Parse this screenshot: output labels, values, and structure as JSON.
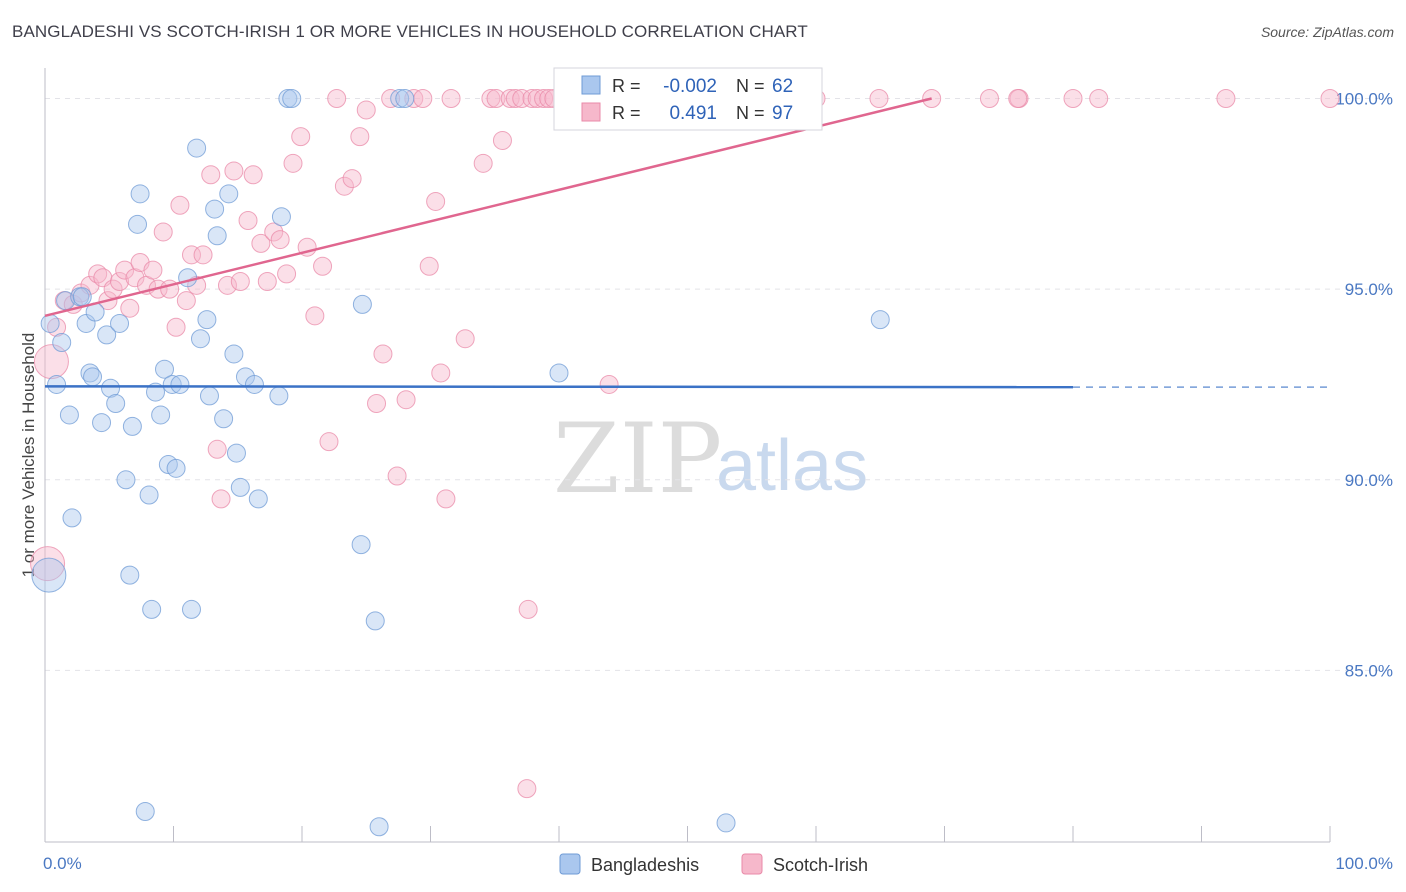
{
  "header": {
    "title": "BANGLADESHI VS SCOTCH-IRISH 1 OR MORE VEHICLES IN HOUSEHOLD CORRELATION CHART",
    "source": "Source: ZipAtlas.com"
  },
  "watermark": {
    "zip": "ZIP",
    "atlas": "atlas"
  },
  "colors": {
    "blue_fill": "#aac7ee",
    "blue_stroke": "#6f9bd6",
    "blue_line": "#3b72c6",
    "pink_fill": "#f6b8cb",
    "pink_stroke": "#e98aa8",
    "pink_line": "#e0668f",
    "axis_text": "#4a78c2",
    "grid": "#e3e3e8"
  },
  "stats_box": {
    "r_label": "R =",
    "n_label": "N =",
    "rows": [
      {
        "series": "Bangladeshis",
        "r": "-0.002",
        "n": "62"
      },
      {
        "series": "Scotch-Irish",
        "r": "0.491",
        "n": "97"
      }
    ]
  },
  "legend": {
    "items": [
      "Bangladeshis",
      "Scotch-Irish"
    ]
  },
  "chart_data": {
    "type": "scatter",
    "title": "BANGLADESHI VS SCOTCH-IRISH 1 OR MORE VEHICLES IN HOUSEHOLD CORRELATION CHART",
    "xlabel": "",
    "ylabel": "1 or more Vehicles in Household",
    "xlim": [
      0,
      100
    ],
    "ylim": [
      80.5,
      100.8
    ],
    "x_tick_labels": [
      "0.0%",
      "100.0%"
    ],
    "y_ticks": [
      85,
      90,
      95,
      100
    ],
    "y_tick_labels": [
      "85.0%",
      "90.0%",
      "95.0%",
      "100.0%"
    ],
    "grid": true,
    "series": [
      {
        "name": "Bangladeshis",
        "r": -0.002,
        "n": 62,
        "trend": {
          "x": [
            0,
            80
          ],
          "y": [
            92.45,
            92.43
          ],
          "dashed_to_x": 100
        },
        "points": [
          [
            0.3,
            87.5
          ],
          [
            0.4,
            94.1
          ],
          [
            0.9,
            92.5
          ],
          [
            1.3,
            93.6
          ],
          [
            1.6,
            94.7
          ],
          [
            1.9,
            91.7
          ],
          [
            2.1,
            89.0
          ],
          [
            2.7,
            94.8
          ],
          [
            2.9,
            94.8
          ],
          [
            3.2,
            94.1
          ],
          [
            3.5,
            92.8
          ],
          [
            3.7,
            92.7
          ],
          [
            3.9,
            94.4
          ],
          [
            4.4,
            91.5
          ],
          [
            4.8,
            93.8
          ],
          [
            5.1,
            92.4
          ],
          [
            5.5,
            92.0
          ],
          [
            5.8,
            94.1
          ],
          [
            6.3,
            90.0
          ],
          [
            6.6,
            87.5
          ],
          [
            6.8,
            91.4
          ],
          [
            7.2,
            96.7
          ],
          [
            7.4,
            97.5
          ],
          [
            7.8,
            81.3
          ],
          [
            8.1,
            89.6
          ],
          [
            8.3,
            86.6
          ],
          [
            8.6,
            92.3
          ],
          [
            9.0,
            91.7
          ],
          [
            9.3,
            92.9
          ],
          [
            9.6,
            90.4
          ],
          [
            9.9,
            92.5
          ],
          [
            10.2,
            90.3
          ],
          [
            10.5,
            92.5
          ],
          [
            11.1,
            95.3
          ],
          [
            11.4,
            86.6
          ],
          [
            11.8,
            98.7
          ],
          [
            12.1,
            93.7
          ],
          [
            12.6,
            94.2
          ],
          [
            12.8,
            92.2
          ],
          [
            13.2,
            97.1
          ],
          [
            13.4,
            96.4
          ],
          [
            13.9,
            91.6
          ],
          [
            14.3,
            97.5
          ],
          [
            14.7,
            93.3
          ],
          [
            14.9,
            90.7
          ],
          [
            15.2,
            89.8
          ],
          [
            15.6,
            92.7
          ],
          [
            16.3,
            92.5
          ],
          [
            16.6,
            89.5
          ],
          [
            18.2,
            92.2
          ],
          [
            18.4,
            96.9
          ],
          [
            18.9,
            100
          ],
          [
            19.2,
            100
          ],
          [
            24.6,
            88.3
          ],
          [
            24.7,
            94.6
          ],
          [
            25.7,
            86.3
          ],
          [
            26.0,
            80.9
          ],
          [
            27.6,
            100
          ],
          [
            28.0,
            100
          ],
          [
            40.0,
            92.8
          ],
          [
            53.0,
            81.0
          ],
          [
            65.0,
            94.2
          ]
        ]
      },
      {
        "name": "Scotch-Irish",
        "r": 0.491,
        "n": 97,
        "trend": {
          "x": [
            0,
            69
          ],
          "y": [
            94.3,
            100
          ]
        },
        "points": [
          [
            0.2,
            87.8
          ],
          [
            0.5,
            93.1
          ],
          [
            0.9,
            94.0
          ],
          [
            1.5,
            94.7
          ],
          [
            2.2,
            94.6
          ],
          [
            2.8,
            94.9
          ],
          [
            3.5,
            95.1
          ],
          [
            4.1,
            95.4
          ],
          [
            4.5,
            95.3
          ],
          [
            4.9,
            94.7
          ],
          [
            5.3,
            95.0
          ],
          [
            5.8,
            95.2
          ],
          [
            6.2,
            95.5
          ],
          [
            6.6,
            94.5
          ],
          [
            7.0,
            95.3
          ],
          [
            7.4,
            95.7
          ],
          [
            7.9,
            95.1
          ],
          [
            8.4,
            95.5
          ],
          [
            8.8,
            95.0
          ],
          [
            9.2,
            96.5
          ],
          [
            9.7,
            95.0
          ],
          [
            10.2,
            94.0
          ],
          [
            10.5,
            97.2
          ],
          [
            11.0,
            94.7
          ],
          [
            11.4,
            95.9
          ],
          [
            11.8,
            95.1
          ],
          [
            12.3,
            95.9
          ],
          [
            12.9,
            98.0
          ],
          [
            13.4,
            90.8
          ],
          [
            13.7,
            89.5
          ],
          [
            14.2,
            95.1
          ],
          [
            14.7,
            98.1
          ],
          [
            15.2,
            95.2
          ],
          [
            15.8,
            96.8
          ],
          [
            16.2,
            98.0
          ],
          [
            16.8,
            96.2
          ],
          [
            17.3,
            95.2
          ],
          [
            17.8,
            96.5
          ],
          [
            18.3,
            96.3
          ],
          [
            18.8,
            95.4
          ],
          [
            19.3,
            98.3
          ],
          [
            19.9,
            99.0
          ],
          [
            20.4,
            96.1
          ],
          [
            21.0,
            94.3
          ],
          [
            21.6,
            95.6
          ],
          [
            22.1,
            91.0
          ],
          [
            22.7,
            100
          ],
          [
            23.3,
            97.7
          ],
          [
            23.9,
            97.9
          ],
          [
            24.5,
            99.0
          ],
          [
            25.0,
            99.7
          ],
          [
            25.8,
            92.0
          ],
          [
            26.3,
            93.3
          ],
          [
            26.9,
            100
          ],
          [
            27.4,
            90.1
          ],
          [
            28.1,
            92.1
          ],
          [
            28.7,
            100
          ],
          [
            29.4,
            100
          ],
          [
            29.9,
            95.6
          ],
          [
            30.4,
            97.3
          ],
          [
            30.8,
            92.8
          ],
          [
            31.2,
            89.5
          ],
          [
            31.6,
            100
          ],
          [
            32.7,
            93.7
          ],
          [
            34.1,
            98.3
          ],
          [
            34.7,
            100
          ],
          [
            35.1,
            100
          ],
          [
            35.6,
            98.9
          ],
          [
            36.2,
            100
          ],
          [
            36.6,
            100
          ],
          [
            37.1,
            100
          ],
          [
            37.6,
            86.6
          ],
          [
            37.9,
            100
          ],
          [
            38.3,
            100
          ],
          [
            38.8,
            100
          ],
          [
            39.2,
            100
          ],
          [
            39.6,
            100
          ],
          [
            40.4,
            100
          ],
          [
            41.2,
            100
          ],
          [
            43.9,
            92.5
          ],
          [
            44.9,
            100
          ],
          [
            46.9,
            100
          ],
          [
            48.3,
            100
          ],
          [
            51.3,
            100
          ],
          [
            53.4,
            100
          ],
          [
            56.2,
            100
          ],
          [
            60.0,
            100
          ],
          [
            64.9,
            100
          ],
          [
            69.0,
            100
          ],
          [
            73.5,
            100
          ],
          [
            75.8,
            100
          ],
          [
            75.7,
            100
          ],
          [
            80.0,
            100
          ],
          [
            82.0,
            100
          ],
          [
            91.9,
            100
          ],
          [
            100.0,
            100
          ],
          [
            37.5,
            81.9
          ]
        ]
      }
    ]
  }
}
